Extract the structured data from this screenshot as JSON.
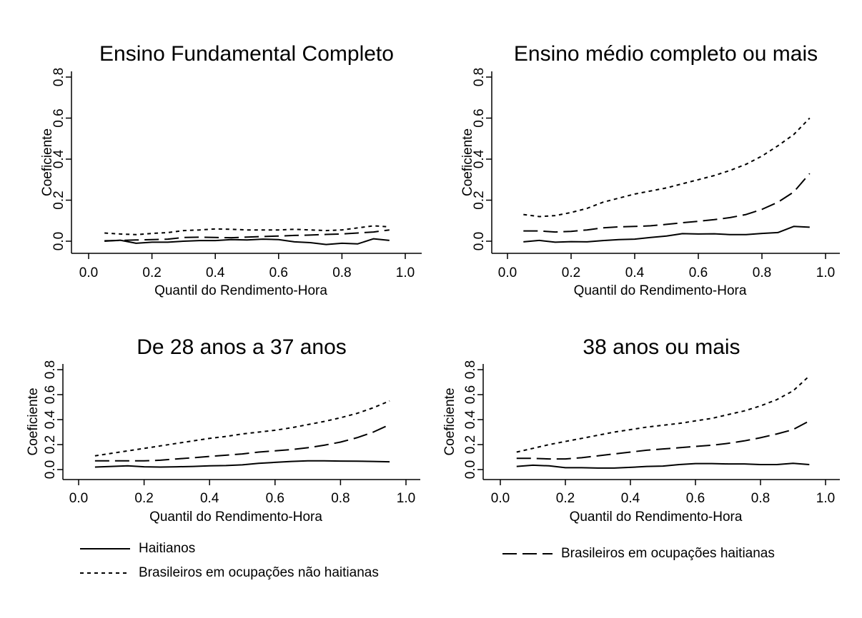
{
  "chart_data": [
    {
      "type": "line",
      "title": "Ensino Fundamental Completo",
      "xlabel": "Quantil do Rendimento-Hora",
      "ylabel": "Coeficiente",
      "xlim": [
        0,
        1
      ],
      "ylim": [
        0,
        0.8
      ],
      "xticks": [
        "0.0",
        "0.2",
        "0.4",
        "0.6",
        "0.8",
        "1.0"
      ],
      "yticks": [
        "0.0",
        "0.2",
        "0.4",
        "0.6",
        "0.8"
      ],
      "x": [
        0.05,
        0.1,
        0.15,
        0.2,
        0.25,
        0.3,
        0.35,
        0.4,
        0.45,
        0.5,
        0.55,
        0.6,
        0.65,
        0.7,
        0.75,
        0.8,
        0.85,
        0.9,
        0.95
      ],
      "series": [
        {
          "key": "haitianos",
          "values": [
            0.0,
            0.005,
            -0.01,
            -0.005,
            -0.005,
            0.0,
            0.003,
            0.003,
            0.008,
            0.006,
            0.01,
            0.008,
            -0.003,
            -0.007,
            -0.016,
            -0.01,
            -0.013,
            0.012,
            0.004
          ]
        },
        {
          "key": "brasileiros_haitianas",
          "values": [
            0.002,
            0.004,
            0.006,
            0.008,
            0.01,
            0.018,
            0.02,
            0.018,
            0.017,
            0.02,
            0.023,
            0.025,
            0.028,
            0.03,
            0.033,
            0.035,
            0.04,
            0.045,
            0.055
          ]
        },
        {
          "key": "brasileiros_nao_haitianas",
          "values": [
            0.04,
            0.035,
            0.032,
            0.038,
            0.042,
            0.052,
            0.055,
            0.06,
            0.058,
            0.055,
            0.055,
            0.055,
            0.058,
            0.055,
            0.052,
            0.055,
            0.065,
            0.075,
            0.07
          ]
        }
      ]
    },
    {
      "type": "line",
      "title": "Ensino médio completo ou mais",
      "xlabel": "Quantil do Rendimento-Hora",
      "ylabel": "Coeficiente",
      "xlim": [
        0,
        1
      ],
      "ylim": [
        0,
        0.8
      ],
      "xticks": [
        "0.0",
        "0.2",
        "0.4",
        "0.6",
        "0.8",
        "1.0"
      ],
      "yticks": [
        "0.0",
        "0.2",
        "0.4",
        "0.6",
        "0.8"
      ],
      "x": [
        0.05,
        0.1,
        0.15,
        0.2,
        0.25,
        0.3,
        0.35,
        0.4,
        0.45,
        0.5,
        0.55,
        0.6,
        0.65,
        0.7,
        0.75,
        0.8,
        0.85,
        0.9,
        0.95
      ],
      "series": [
        {
          "key": "haitianos",
          "values": [
            -0.003,
            0.004,
            -0.005,
            -0.002,
            -0.003,
            0.003,
            0.008,
            0.01,
            0.018,
            0.025,
            0.037,
            0.035,
            0.036,
            0.032,
            0.032,
            0.038,
            0.042,
            0.072,
            0.068
          ]
        },
        {
          "key": "brasileiros_haitianas",
          "values": [
            0.05,
            0.05,
            0.045,
            0.048,
            0.055,
            0.065,
            0.07,
            0.072,
            0.075,
            0.082,
            0.09,
            0.097,
            0.105,
            0.115,
            0.13,
            0.155,
            0.19,
            0.24,
            0.33
          ]
        },
        {
          "key": "brasileiros_nao_haitianas",
          "values": [
            0.13,
            0.12,
            0.125,
            0.14,
            0.16,
            0.19,
            0.21,
            0.23,
            0.245,
            0.26,
            0.28,
            0.3,
            0.32,
            0.345,
            0.375,
            0.415,
            0.465,
            0.52,
            0.6
          ]
        }
      ]
    },
    {
      "type": "line",
      "title": "De 28 anos a 37 anos",
      "xlabel": "Quantil do Rendimento-Hora",
      "ylabel": "Coeficiente",
      "xlim": [
        0,
        1
      ],
      "ylim": [
        0,
        0.8
      ],
      "xticks": [
        "0.0",
        "0.2",
        "0.4",
        "0.6",
        "0.8",
        "1.0"
      ],
      "yticks": [
        "0.0",
        "0.2",
        "0.4",
        "0.6",
        "0.8"
      ],
      "x": [
        0.05,
        0.1,
        0.15,
        0.2,
        0.25,
        0.3,
        0.35,
        0.4,
        0.45,
        0.5,
        0.55,
        0.6,
        0.65,
        0.7,
        0.75,
        0.8,
        0.85,
        0.9,
        0.95
      ],
      "series": [
        {
          "key": "haitianos",
          "values": [
            0.02,
            0.025,
            0.03,
            0.022,
            0.02,
            0.022,
            0.025,
            0.03,
            0.032,
            0.038,
            0.05,
            0.058,
            0.065,
            0.07,
            0.07,
            0.068,
            0.067,
            0.065,
            0.062
          ]
        },
        {
          "key": "brasileiros_haitianas",
          "values": [
            0.07,
            0.07,
            0.07,
            0.07,
            0.075,
            0.085,
            0.095,
            0.105,
            0.115,
            0.125,
            0.14,
            0.15,
            0.16,
            0.175,
            0.195,
            0.22,
            0.255,
            0.3,
            0.36
          ]
        },
        {
          "key": "brasileiros_nao_haitianas",
          "values": [
            0.11,
            0.13,
            0.15,
            0.17,
            0.19,
            0.21,
            0.23,
            0.25,
            0.265,
            0.285,
            0.3,
            0.315,
            0.335,
            0.36,
            0.385,
            0.415,
            0.45,
            0.495,
            0.55
          ]
        }
      ]
    },
    {
      "type": "line",
      "title": "38 anos ou mais",
      "xlabel": "Quantil do Rendimento-Hora",
      "ylabel": "Coeficiente",
      "xlim": [
        0,
        1
      ],
      "ylim": [
        0,
        0.8
      ],
      "xticks": [
        "0.0",
        "0.2",
        "0.4",
        "0.6",
        "0.8",
        "1.0"
      ],
      "yticks": [
        "0.0",
        "0.2",
        "0.4",
        "0.6",
        "0.8"
      ],
      "x": [
        0.05,
        0.1,
        0.15,
        0.2,
        0.25,
        0.3,
        0.35,
        0.4,
        0.45,
        0.5,
        0.55,
        0.6,
        0.65,
        0.7,
        0.75,
        0.8,
        0.85,
        0.9,
        0.95
      ],
      "series": [
        {
          "key": "haitianos",
          "values": [
            0.025,
            0.035,
            0.03,
            0.015,
            0.015,
            0.012,
            0.012,
            0.018,
            0.025,
            0.028,
            0.04,
            0.048,
            0.048,
            0.045,
            0.045,
            0.04,
            0.04,
            0.05,
            0.04
          ]
        },
        {
          "key": "brasileiros_haitianas",
          "values": [
            0.09,
            0.09,
            0.085,
            0.085,
            0.095,
            0.11,
            0.125,
            0.14,
            0.155,
            0.165,
            0.175,
            0.185,
            0.195,
            0.21,
            0.23,
            0.255,
            0.285,
            0.32,
            0.39
          ]
        },
        {
          "key": "brasileiros_nao_haitianas",
          "values": [
            0.14,
            0.17,
            0.2,
            0.225,
            0.25,
            0.275,
            0.3,
            0.32,
            0.34,
            0.355,
            0.37,
            0.39,
            0.41,
            0.44,
            0.47,
            0.51,
            0.56,
            0.63,
            0.75
          ]
        }
      ]
    }
  ],
  "legend": {
    "items": [
      {
        "key": "haitianos",
        "label": "Haitianos",
        "style": "solid"
      },
      {
        "key": "brasileiros_nao_haitianas",
        "label": "Brasileiros em ocupações não haitianas",
        "style": "dotted"
      },
      {
        "key": "brasileiros_haitianas",
        "label": "Brasileiros em ocupações haitianas",
        "style": "dashed"
      }
    ]
  }
}
